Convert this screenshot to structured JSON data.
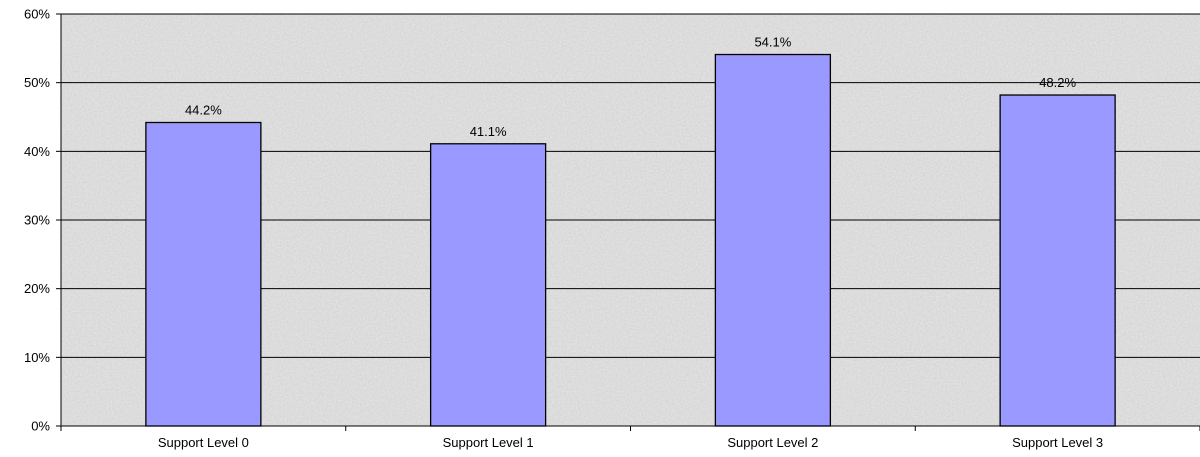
{
  "chart_data": {
    "type": "bar",
    "title": "",
    "xlabel": "",
    "ylabel": "",
    "categories": [
      "Support Level 0",
      "Support Level 1",
      "Support Level 2",
      "Support Level 3"
    ],
    "values": [
      44.2,
      41.1,
      54.1,
      48.2
    ],
    "data_labels": [
      "44.2%",
      "41.1%",
      "54.1%",
      "48.2%"
    ],
    "ylim": [
      0,
      60
    ],
    "yticks": [
      0,
      10,
      20,
      30,
      40,
      50,
      60
    ],
    "ytick_labels": [
      "0%",
      "10%",
      "20%",
      "30%",
      "40%",
      "50%",
      "60%"
    ],
    "grid": true,
    "legend": "none",
    "colors": {
      "bar_fill": "#9999ff",
      "bar_stroke": "#000000",
      "plot_background": "#e6e6e6",
      "gridline": "#000000"
    }
  }
}
